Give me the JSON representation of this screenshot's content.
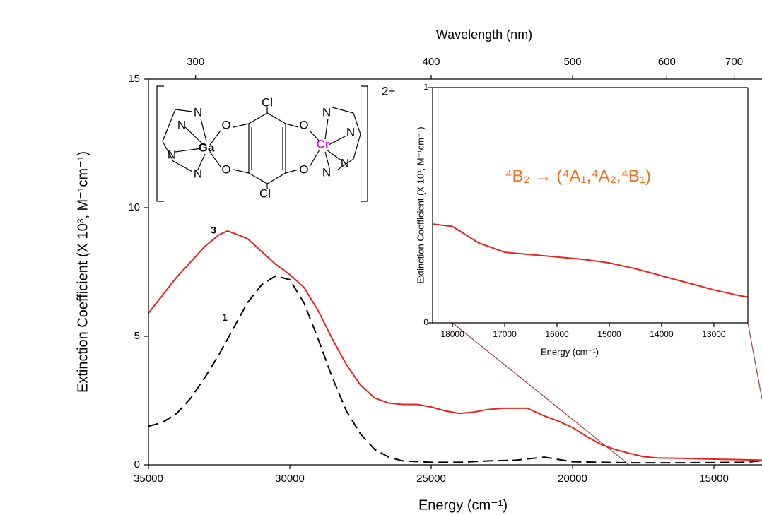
{
  "chart_data": [
    {
      "type": "line",
      "xlabel": "Energy (cm⁻¹)",
      "ylabel": "Extinction Coefficient (X 10³, M⁻¹cm⁻¹)",
      "x2label": "Wavelength (nm)",
      "xlim": [
        35000,
        13300
      ],
      "ylim": [
        0,
        15
      ],
      "xticks": [
        35000,
        30000,
        25000,
        20000,
        15000
      ],
      "yticks": [
        0,
        5,
        10,
        15
      ],
      "x2ticks": [
        300,
        400,
        500,
        600,
        700
      ],
      "annotations": [
        {
          "text": "3",
          "x": 32700,
          "y": 9.1
        },
        {
          "text": "1",
          "x": 32300,
          "y": 5.7
        }
      ],
      "series": [
        {
          "name": "3",
          "color": "#e8231f",
          "dash": "solid",
          "x": [
            35000,
            34000,
            33000,
            32500,
            32200,
            31500,
            31000,
            30500,
            30000,
            29500,
            29000,
            28500,
            28000,
            27500,
            27000,
            26500,
            26000,
            25500,
            25000,
            24500,
            24000,
            23500,
            23000,
            22500,
            22000,
            21600,
            21000,
            20500,
            20000,
            19500,
            19000,
            18500,
            18000,
            17500,
            17000,
            16000,
            15000,
            14000,
            13300
          ],
          "values": [
            5.9,
            7.3,
            8.5,
            8.95,
            9.1,
            8.8,
            8.3,
            7.8,
            7.4,
            6.9,
            6.0,
            4.9,
            3.9,
            3.1,
            2.6,
            2.4,
            2.35,
            2.35,
            2.25,
            2.1,
            2.0,
            2.05,
            2.15,
            2.2,
            2.2,
            2.2,
            1.9,
            1.7,
            1.45,
            1.1,
            0.8,
            0.6,
            0.45,
            0.32,
            0.27,
            0.25,
            0.22,
            0.2,
            0.18
          ]
        },
        {
          "name": "1",
          "color": "#000000",
          "dash": "dashed",
          "x": [
            35000,
            34500,
            34000,
            33500,
            33000,
            32500,
            32000,
            31500,
            31000,
            30500,
            30000,
            29500,
            29000,
            28500,
            28000,
            27500,
            27000,
            26500,
            26000,
            25000,
            24000,
            23000,
            22000,
            21000,
            20000,
            18000,
            16000,
            14000,
            13300
          ],
          "values": [
            1.5,
            1.65,
            2.0,
            2.6,
            3.4,
            4.3,
            5.3,
            6.3,
            7.0,
            7.35,
            7.2,
            6.3,
            4.9,
            3.4,
            2.1,
            1.2,
            0.6,
            0.3,
            0.15,
            0.1,
            0.1,
            0.15,
            0.18,
            0.3,
            0.12,
            0.08,
            0.08,
            0.1,
            0.15
          ]
        }
      ]
    },
    {
      "type": "line",
      "xlabel": "Energy (cm⁻¹)",
      "ylabel": "Extinction Coefficient (X 10³, M⁻¹cm⁻¹)",
      "xlim": [
        18380,
        12350
      ],
      "ylim": [
        0,
        1
      ],
      "xticks": [
        18000,
        17000,
        16000,
        15000,
        14000,
        13000
      ],
      "yticks": [
        0,
        1
      ],
      "annotations": [
        {
          "text": "⁴B₂ → (⁴A₁,⁴A₂,⁴B₁)",
          "x": 15600,
          "y": 0.62
        }
      ],
      "series": [
        {
          "name": "3",
          "color": "#e8231f",
          "dash": "solid",
          "x": [
            18380,
            18000,
            17500,
            17000,
            16500,
            16000,
            15500,
            15000,
            14500,
            14000,
            13500,
            13000,
            12500,
            12350
          ],
          "values": [
            0.42,
            0.41,
            0.34,
            0.3,
            0.29,
            0.28,
            0.27,
            0.255,
            0.23,
            0.2,
            0.17,
            0.14,
            0.115,
            0.11
          ]
        }
      ]
    }
  ],
  "structure": {
    "charge": "2+",
    "atoms": [
      "Cl",
      "Cl",
      "O",
      "O",
      "O",
      "O",
      "Ga",
      "Cr",
      "N",
      "N",
      "N",
      "N",
      "N",
      "N",
      "N",
      "N"
    ]
  }
}
